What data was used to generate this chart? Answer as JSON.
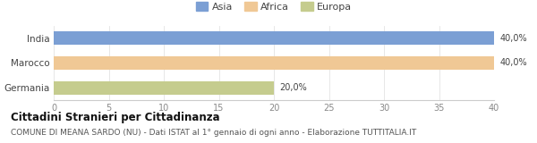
{
  "categories": [
    "India",
    "Marocco",
    "Germania"
  ],
  "values": [
    40.0,
    40.0,
    20.0
  ],
  "bar_colors": [
    "#7b9fd4",
    "#f0c895",
    "#c5cc8e"
  ],
  "legend_labels": [
    "Asia",
    "Africa",
    "Europa"
  ],
  "legend_colors": [
    "#7b9fd4",
    "#f0c895",
    "#c5cc8e"
  ],
  "bar_labels": [
    "40,0%",
    "40,0%",
    "20,0%"
  ],
  "xlim": [
    0,
    40
  ],
  "xticks": [
    0,
    5,
    10,
    15,
    20,
    25,
    30,
    35,
    40
  ],
  "title": "Cittadini Stranieri per Cittadinanza",
  "subtitle": "COMUNE DI MEANA SARDO (NU) - Dati ISTAT al 1° gennaio di ogni anno - Elaborazione TUTTITALIA.IT",
  "title_fontsize": 8.5,
  "subtitle_fontsize": 6.5,
  "background_color": "#ffffff",
  "bar_height": 0.55
}
